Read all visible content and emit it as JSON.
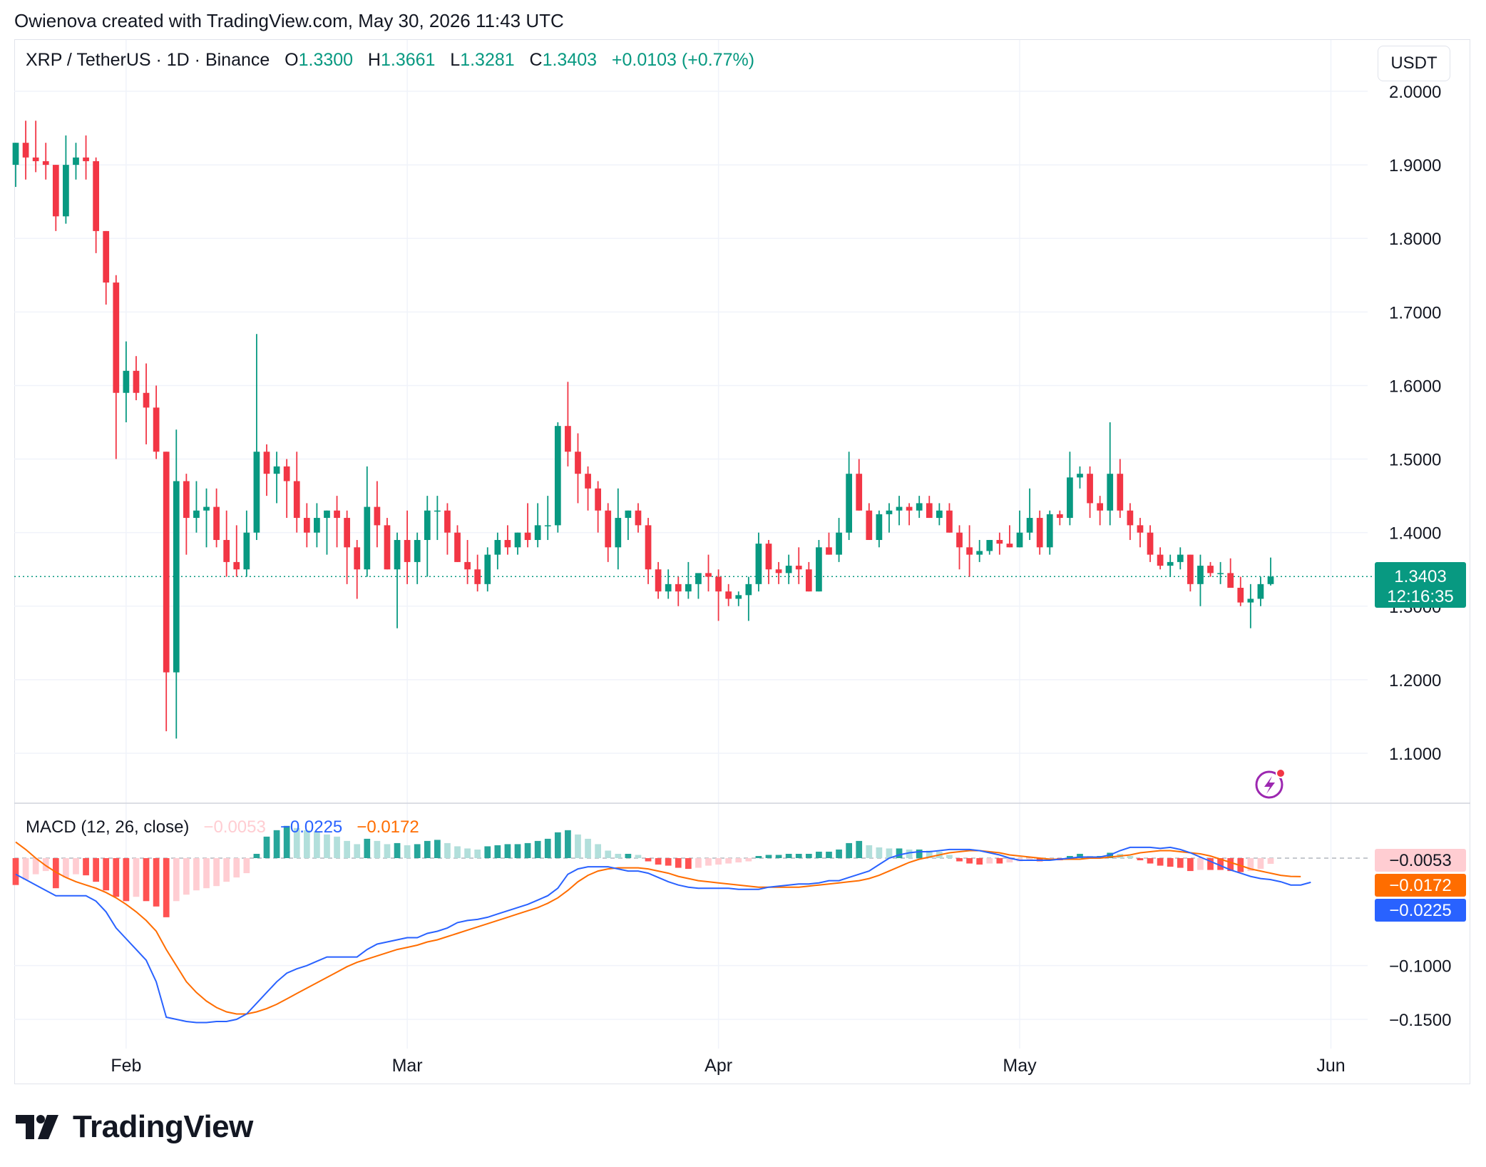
{
  "header": {
    "created_by": "Owienova created with TradingView.com, May 30, 2026 11:43 UTC"
  },
  "legend": {
    "symbol": "XRP / TetherUS · 1D · Binance",
    "o_label": "O",
    "o_value": "1.3300",
    "h_label": "H",
    "h_value": "1.3661",
    "l_label": "L",
    "l_value": "1.3281",
    "c_label": "C",
    "c_value": "1.3403",
    "change": "+0.0103 (+0.77%)"
  },
  "currency_unit": "USDT",
  "last_price": {
    "price": "1.3403",
    "countdown": "12:16:35"
  },
  "macd_legend": {
    "title": "MACD (12, 26, close)",
    "hist": "−0.0053",
    "macd": "−0.0225",
    "signal": "−0.0172"
  },
  "macd_labels": {
    "hist": "−0.0053",
    "signal": "−0.0172",
    "macd": "−0.0225"
  },
  "brand": {
    "name": "TradingView"
  },
  "colors": {
    "up": "#089981",
    "down": "#f23645",
    "hist_up_strong": "#26a69a",
    "hist_up_weak": "#b2dfdb",
    "hist_down_strong": "#ff5252",
    "hist_down_weak": "#ffcdd2",
    "macd_line": "#2962ff",
    "signal_line": "#ff6d00",
    "grid": "#f0f3fa",
    "alert_icon": "#9c27b0"
  },
  "chart_data": [
    {
      "type": "candlestick",
      "title": "XRP / TetherUS · 1D · Binance",
      "x_tick_labels": [
        "Feb",
        "Mar",
        "Apr",
        "May",
        "Jun"
      ],
      "y_tick_labels": [
        "2.0000",
        "1.9000",
        "1.8000",
        "1.7000",
        "1.6000",
        "1.5000",
        "1.4000",
        "1.3000",
        "1.2000",
        "1.1000"
      ],
      "ylim": [
        1.04,
        2.0
      ],
      "first_date": "Jan 21",
      "last_date": "May 30",
      "last_price_line": 1.3403,
      "candles": [
        [
          1.9,
          1.93,
          1.87,
          1.93
        ],
        [
          1.93,
          1.96,
          1.88,
          1.91
        ],
        [
          1.91,
          1.96,
          1.89,
          1.905
        ],
        [
          1.905,
          1.93,
          1.88,
          1.9
        ],
        [
          1.9,
          1.9,
          1.81,
          1.83
        ],
        [
          1.83,
          1.94,
          1.82,
          1.9
        ],
        [
          1.9,
          1.93,
          1.88,
          1.91
        ],
        [
          1.91,
          1.94,
          1.88,
          1.905
        ],
        [
          1.905,
          1.91,
          1.78,
          1.81
        ],
        [
          1.81,
          1.81,
          1.71,
          1.74
        ],
        [
          1.74,
          1.75,
          1.5,
          1.59
        ],
        [
          1.59,
          1.66,
          1.55,
          1.62
        ],
        [
          1.62,
          1.64,
          1.58,
          1.59
        ],
        [
          1.59,
          1.63,
          1.52,
          1.57
        ],
        [
          1.57,
          1.6,
          1.5,
          1.51
        ],
        [
          1.51,
          1.51,
          1.13,
          1.21
        ],
        [
          1.21,
          1.54,
          1.12,
          1.47
        ],
        [
          1.47,
          1.48,
          1.37,
          1.42
        ],
        [
          1.42,
          1.47,
          1.4,
          1.43
        ],
        [
          1.43,
          1.46,
          1.38,
          1.435
        ],
        [
          1.435,
          1.46,
          1.38,
          1.39
        ],
        [
          1.39,
          1.43,
          1.34,
          1.36
        ],
        [
          1.36,
          1.41,
          1.34,
          1.35
        ],
        [
          1.35,
          1.43,
          1.34,
          1.4
        ],
        [
          1.4,
          1.67,
          1.39,
          1.51
        ],
        [
          1.51,
          1.52,
          1.45,
          1.48
        ],
        [
          1.48,
          1.51,
          1.44,
          1.49
        ],
        [
          1.49,
          1.5,
          1.42,
          1.47
        ],
        [
          1.47,
          1.51,
          1.4,
          1.42
        ],
        [
          1.42,
          1.44,
          1.38,
          1.4
        ],
        [
          1.4,
          1.44,
          1.38,
          1.42
        ],
        [
          1.42,
          1.43,
          1.37,
          1.43
        ],
        [
          1.43,
          1.45,
          1.38,
          1.42
        ],
        [
          1.42,
          1.43,
          1.33,
          1.38
        ],
        [
          1.38,
          1.39,
          1.31,
          1.35
        ],
        [
          1.35,
          1.49,
          1.34,
          1.435
        ],
        [
          1.435,
          1.47,
          1.38,
          1.41
        ],
        [
          1.41,
          1.42,
          1.35,
          1.35
        ],
        [
          1.35,
          1.4,
          1.27,
          1.39
        ],
        [
          1.39,
          1.43,
          1.33,
          1.36
        ],
        [
          1.36,
          1.4,
          1.33,
          1.39
        ],
        [
          1.39,
          1.45,
          1.34,
          1.43
        ],
        [
          1.43,
          1.45,
          1.39,
          1.43
        ],
        [
          1.43,
          1.44,
          1.37,
          1.4
        ],
        [
          1.4,
          1.41,
          1.36,
          1.36
        ],
        [
          1.36,
          1.39,
          1.33,
          1.35
        ],
        [
          1.35,
          1.37,
          1.32,
          1.33
        ],
        [
          1.33,
          1.38,
          1.32,
          1.37
        ],
        [
          1.37,
          1.4,
          1.35,
          1.39
        ],
        [
          1.39,
          1.41,
          1.37,
          1.38
        ],
        [
          1.38,
          1.4,
          1.37,
          1.4
        ],
        [
          1.4,
          1.44,
          1.38,
          1.39
        ],
        [
          1.39,
          1.44,
          1.38,
          1.41
        ],
        [
          1.41,
          1.45,
          1.39,
          1.41
        ],
        [
          1.41,
          1.55,
          1.4,
          1.545
        ],
        [
          1.545,
          1.605,
          1.49,
          1.51
        ],
        [
          1.51,
          1.535,
          1.44,
          1.48
        ],
        [
          1.48,
          1.49,
          1.43,
          1.46
        ],
        [
          1.46,
          1.47,
          1.4,
          1.43
        ],
        [
          1.43,
          1.44,
          1.36,
          1.38
        ],
        [
          1.38,
          1.46,
          1.35,
          1.42
        ],
        [
          1.42,
          1.43,
          1.39,
          1.43
        ],
        [
          1.43,
          1.44,
          1.4,
          1.41
        ],
        [
          1.41,
          1.42,
          1.33,
          1.35
        ],
        [
          1.35,
          1.36,
          1.31,
          1.32
        ],
        [
          1.32,
          1.35,
          1.31,
          1.33
        ],
        [
          1.33,
          1.34,
          1.3,
          1.32
        ],
        [
          1.32,
          1.36,
          1.31,
          1.33
        ],
        [
          1.33,
          1.34,
          1.31,
          1.345
        ],
        [
          1.345,
          1.37,
          1.32,
          1.34
        ],
        [
          1.34,
          1.35,
          1.28,
          1.32
        ],
        [
          1.32,
          1.33,
          1.3,
          1.31
        ],
        [
          1.31,
          1.32,
          1.3,
          1.315
        ],
        [
          1.315,
          1.34,
          1.28,
          1.33
        ],
        [
          1.33,
          1.4,
          1.32,
          1.385
        ],
        [
          1.385,
          1.39,
          1.33,
          1.35
        ],
        [
          1.35,
          1.36,
          1.33,
          1.345
        ],
        [
          1.345,
          1.37,
          1.33,
          1.355
        ],
        [
          1.355,
          1.38,
          1.33,
          1.35
        ],
        [
          1.35,
          1.36,
          1.32,
          1.32
        ],
        [
          1.32,
          1.39,
          1.32,
          1.38
        ],
        [
          1.38,
          1.4,
          1.37,
          1.37
        ],
        [
          1.37,
          1.42,
          1.36,
          1.4
        ],
        [
          1.4,
          1.51,
          1.39,
          1.48
        ],
        [
          1.48,
          1.5,
          1.43,
          1.43
        ],
        [
          1.43,
          1.44,
          1.39,
          1.39
        ],
        [
          1.39,
          1.43,
          1.38,
          1.425
        ],
        [
          1.425,
          1.44,
          1.4,
          1.43
        ],
        [
          1.43,
          1.45,
          1.41,
          1.435
        ],
        [
          1.435,
          1.44,
          1.41,
          1.43
        ],
        [
          1.43,
          1.45,
          1.42,
          1.44
        ],
        [
          1.44,
          1.45,
          1.42,
          1.42
        ],
        [
          1.42,
          1.44,
          1.41,
          1.43
        ],
        [
          1.43,
          1.44,
          1.4,
          1.4
        ],
        [
          1.4,
          1.41,
          1.35,
          1.38
        ],
        [
          1.38,
          1.41,
          1.34,
          1.37
        ],
        [
          1.37,
          1.39,
          1.36,
          1.375
        ],
        [
          1.375,
          1.39,
          1.37,
          1.39
        ],
        [
          1.39,
          1.4,
          1.37,
          1.385
        ],
        [
          1.385,
          1.41,
          1.38,
          1.38
        ],
        [
          1.38,
          1.43,
          1.38,
          1.4
        ],
        [
          1.4,
          1.46,
          1.39,
          1.42
        ],
        [
          1.42,
          1.43,
          1.37,
          1.38
        ],
        [
          1.38,
          1.43,
          1.37,
          1.425
        ],
        [
          1.425,
          1.43,
          1.41,
          1.42
        ],
        [
          1.42,
          1.51,
          1.41,
          1.475
        ],
        [
          1.475,
          1.49,
          1.46,
          1.48
        ],
        [
          1.48,
          1.49,
          1.42,
          1.44
        ],
        [
          1.44,
          1.45,
          1.41,
          1.43
        ],
        [
          1.43,
          1.55,
          1.41,
          1.48
        ],
        [
          1.48,
          1.5,
          1.42,
          1.43
        ],
        [
          1.43,
          1.44,
          1.39,
          1.41
        ],
        [
          1.41,
          1.42,
          1.38,
          1.4
        ],
        [
          1.4,
          1.41,
          1.36,
          1.37
        ],
        [
          1.37,
          1.38,
          1.35,
          1.355
        ],
        [
          1.355,
          1.37,
          1.34,
          1.36
        ],
        [
          1.36,
          1.38,
          1.35,
          1.37
        ],
        [
          1.37,
          1.37,
          1.32,
          1.33
        ],
        [
          1.33,
          1.37,
          1.3,
          1.355
        ],
        [
          1.355,
          1.36,
          1.34,
          1.345
        ],
        [
          1.345,
          1.36,
          1.33,
          1.345
        ],
        [
          1.345,
          1.365,
          1.33,
          1.325
        ],
        [
          1.325,
          1.34,
          1.3,
          1.305
        ],
        [
          1.305,
          1.33,
          1.27,
          1.31
        ],
        [
          1.31,
          1.34,
          1.3,
          1.33
        ],
        [
          1.33,
          1.3661,
          1.3281,
          1.3403
        ]
      ]
    },
    {
      "type": "macd",
      "title": "MACD (12, 26, close)",
      "y_tick_labels": [
        "−0.1000",
        "−0.1500"
      ],
      "ylim": [
        -0.185,
        0.025
      ],
      "histogram": [
        -0.025,
        -0.02,
        -0.015,
        -0.012,
        -0.028,
        -0.018,
        -0.015,
        -0.016,
        -0.022,
        -0.03,
        -0.036,
        -0.04,
        -0.036,
        -0.04,
        -0.045,
        -0.055,
        -0.04,
        -0.034,
        -0.03,
        -0.028,
        -0.026,
        -0.022,
        -0.018,
        -0.014,
        0.004,
        0.02,
        0.026,
        0.03,
        0.028,
        0.026,
        0.025,
        0.022,
        0.02,
        0.016,
        0.013,
        0.018,
        0.016,
        0.013,
        0.014,
        0.012,
        0.013,
        0.016,
        0.017,
        0.014,
        0.011,
        0.009,
        0.008,
        0.011,
        0.012,
        0.013,
        0.013,
        0.014,
        0.016,
        0.018,
        0.024,
        0.026,
        0.022,
        0.018,
        0.013,
        0.007,
        0.004,
        0.004,
        0.003,
        -0.003,
        -0.006,
        -0.007,
        -0.009,
        -0.01,
        -0.009,
        -0.007,
        -0.006,
        -0.005,
        -0.004,
        -0.003,
        0.002,
        0.003,
        0.003,
        0.004,
        0.004,
        0.004,
        0.006,
        0.006,
        0.008,
        0.014,
        0.016,
        0.012,
        0.01,
        0.009,
        0.009,
        0.008,
        0.008,
        0.007,
        0.006,
        0.003,
        -0.003,
        -0.005,
        -0.006,
        -0.005,
        -0.005,
        -0.004,
        -0.003,
        -0.002,
        -0.003,
        -0.002,
        -0.002,
        0.002,
        0.004,
        0.002,
        0.002,
        0.005,
        0.004,
        0.002,
        -0.002,
        -0.005,
        -0.007,
        -0.008,
        -0.009,
        -0.012,
        -0.011,
        -0.011,
        -0.011,
        -0.012,
        -0.013,
        -0.012,
        -0.01,
        -0.0053
      ],
      "macd": [
        -0.015,
        -0.02,
        -0.025,
        -0.03,
        -0.035,
        -0.035,
        -0.035,
        -0.035,
        -0.04,
        -0.05,
        -0.065,
        -0.075,
        -0.085,
        -0.095,
        -0.115,
        -0.148,
        -0.15,
        -0.152,
        -0.153,
        -0.153,
        -0.152,
        -0.152,
        -0.15,
        -0.145,
        -0.135,
        -0.125,
        -0.115,
        -0.107,
        -0.103,
        -0.1,
        -0.096,
        -0.092,
        -0.092,
        -0.092,
        -0.092,
        -0.085,
        -0.08,
        -0.078,
        -0.076,
        -0.074,
        -0.074,
        -0.07,
        -0.068,
        -0.065,
        -0.06,
        -0.058,
        -0.057,
        -0.055,
        -0.052,
        -0.049,
        -0.046,
        -0.043,
        -0.039,
        -0.035,
        -0.028,
        -0.015,
        -0.01,
        -0.008,
        -0.008,
        -0.008,
        -0.01,
        -0.012,
        -0.012,
        -0.014,
        -0.018,
        -0.022,
        -0.025,
        -0.027,
        -0.028,
        -0.028,
        -0.028,
        -0.028,
        -0.029,
        -0.029,
        -0.029,
        -0.027,
        -0.026,
        -0.025,
        -0.024,
        -0.024,
        -0.023,
        -0.021,
        -0.021,
        -0.018,
        -0.015,
        -0.012,
        -0.006,
        0.0,
        0.003,
        0.005,
        0.006,
        0.006,
        0.007,
        0.008,
        0.008,
        0.008,
        0.007,
        0.005,
        0.003,
        0.0,
        -0.002,
        -0.002,
        -0.002,
        -0.002,
        -0.001,
        0.0,
        0.001,
        0.001,
        0.001,
        0.003,
        0.007,
        0.01,
        0.01,
        0.01,
        0.009,
        0.01,
        0.008,
        0.005,
        0.001,
        -0.003,
        -0.007,
        -0.011,
        -0.014,
        -0.017,
        -0.019,
        -0.02,
        -0.022,
        -0.025,
        -0.025,
        -0.0225
      ],
      "signal": [
        0.015,
        0.008,
        0.0,
        -0.007,
        -0.013,
        -0.018,
        -0.022,
        -0.025,
        -0.028,
        -0.032,
        -0.037,
        -0.043,
        -0.05,
        -0.058,
        -0.068,
        -0.085,
        -0.1,
        -0.115,
        -0.125,
        -0.133,
        -0.139,
        -0.143,
        -0.145,
        -0.145,
        -0.143,
        -0.14,
        -0.136,
        -0.131,
        -0.126,
        -0.121,
        -0.116,
        -0.111,
        -0.106,
        -0.101,
        -0.097,
        -0.094,
        -0.091,
        -0.088,
        -0.085,
        -0.083,
        -0.081,
        -0.078,
        -0.076,
        -0.073,
        -0.07,
        -0.067,
        -0.064,
        -0.061,
        -0.058,
        -0.055,
        -0.052,
        -0.049,
        -0.046,
        -0.042,
        -0.037,
        -0.03,
        -0.022,
        -0.016,
        -0.012,
        -0.01,
        -0.009,
        -0.009,
        -0.009,
        -0.01,
        -0.012,
        -0.014,
        -0.017,
        -0.019,
        -0.021,
        -0.022,
        -0.023,
        -0.024,
        -0.025,
        -0.026,
        -0.027,
        -0.027,
        -0.027,
        -0.027,
        -0.027,
        -0.026,
        -0.025,
        -0.024,
        -0.023,
        -0.022,
        -0.021,
        -0.019,
        -0.016,
        -0.012,
        -0.008,
        -0.004,
        -0.001,
        0.001,
        0.003,
        0.005,
        0.006,
        0.007,
        0.007,
        0.006,
        0.005,
        0.003,
        0.002,
        0.001,
        0.0,
        -0.001,
        -0.001,
        -0.001,
        -0.001,
        0.0,
        0.0,
        0.001,
        0.002,
        0.003,
        0.005,
        0.006,
        0.007,
        0.007,
        0.006,
        0.005,
        0.004,
        0.002,
        -0.001,
        -0.004,
        -0.007,
        -0.01,
        -0.012,
        -0.014,
        -0.016,
        -0.017,
        -0.0172
      ]
    }
  ]
}
